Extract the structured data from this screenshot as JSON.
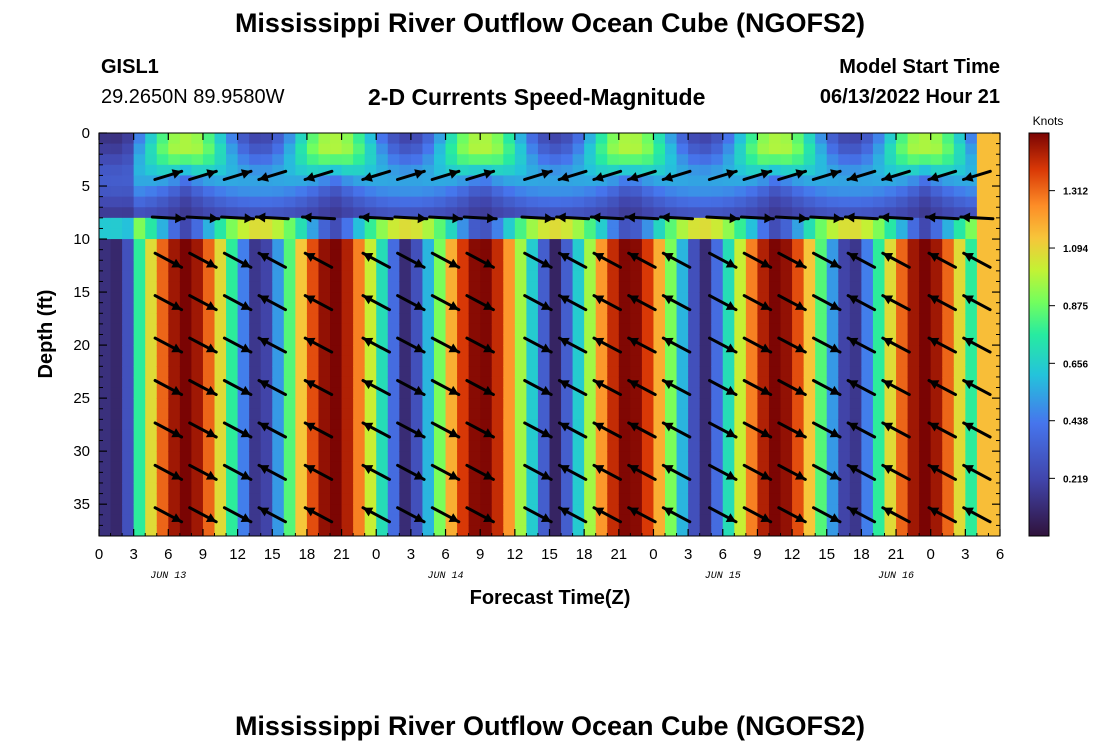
{
  "header": {
    "title": "Mississippi River Outflow Ocean Cube (NGOFS2)",
    "station_id": "GISL1",
    "station_coords": "29.2650N  89.9580W",
    "subtitle": "2-D Currents Speed-Magnitude",
    "model_start_label": "Model Start Time",
    "model_start_value": "06/13/2022 Hour 21"
  },
  "footer": {
    "title": "Mississippi River Outflow Ocean Cube (NGOFS2)"
  },
  "chart_data": {
    "type": "heatmap",
    "title": "2-D Currents Speed-Magnitude",
    "xlabel": "Forecast Time(Z)",
    "ylabel": "Depth (ft)",
    "x_ticks": [
      "0",
      "3",
      "6",
      "9",
      "12",
      "15",
      "18",
      "21",
      "0",
      "3",
      "6",
      "9",
      "12",
      "15",
      "18",
      "21",
      "0",
      "3",
      "6",
      "9",
      "12",
      "15",
      "18",
      "21",
      "0",
      "3",
      "6"
    ],
    "x_range_hours": [
      0,
      78
    ],
    "date_labels": [
      {
        "label": "JUN 13",
        "hour": 6
      },
      {
        "label": "JUN 14",
        "hour": 30
      },
      {
        "label": "JUN 15",
        "hour": 54
      },
      {
        "label": "JUN 16",
        "hour": 69
      }
    ],
    "y_ticks": [
      "0",
      "5",
      "10",
      "15",
      "20",
      "25",
      "30",
      "35"
    ],
    "ylim": [
      0,
      38
    ],
    "y_inverted": true,
    "colorbar": {
      "title": "Knots",
      "ticks": [
        "0.219",
        "0.438",
        "0.656",
        "0.875",
        "1.094",
        "1.312"
      ],
      "range": [
        0.0,
        1.531
      ]
    },
    "speed_peaks_hours": [
      7,
      19,
      20,
      38,
      68
    ],
    "vector_columns_hours": [
      6,
      9,
      12,
      15,
      19,
      24,
      27,
      30,
      33,
      38,
      41,
      44,
      47,
      50,
      54,
      57,
      60,
      63,
      66,
      69,
      73,
      76
    ],
    "vector_depths_ft": [
      4,
      8,
      12,
      16,
      20,
      24,
      28,
      32,
      36
    ]
  }
}
